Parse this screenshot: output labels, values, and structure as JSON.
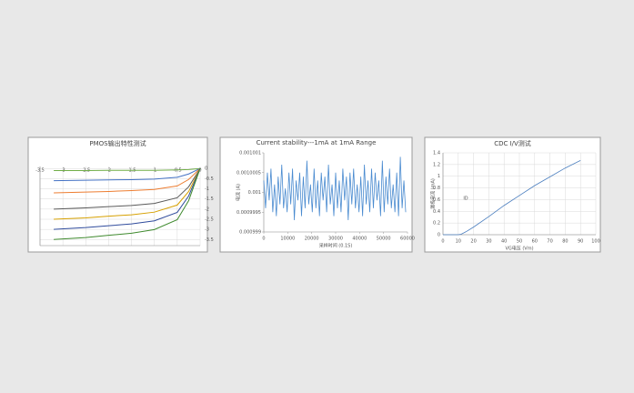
{
  "chart_data": [
    {
      "type": "line",
      "title": "PMOS输出特性测试",
      "grid": true,
      "x": [
        -3.2,
        -2.5,
        -2,
        -1.5,
        -1,
        -0.5,
        -0.25,
        0
      ],
      "xlim": [
        -3.5,
        0
      ],
      "xticks": [
        -3.5,
        -3,
        -2.5,
        -2,
        -1.5,
        -1,
        -0.5,
        0
      ],
      "ylim": [
        -3.8,
        0.1
      ],
      "yticks": [
        0,
        -0.5,
        -1,
        -1.5,
        -2,
        -2.5,
        -3,
        -3.5
      ],
      "series": [
        {
          "color": "#70ad47",
          "values": [
            -0.1,
            -0.1,
            -0.09,
            -0.09,
            -0.09,
            -0.07,
            -0.05,
            0
          ]
        },
        {
          "color": "#4472c4",
          "values": [
            -0.6,
            -0.58,
            -0.56,
            -0.55,
            -0.52,
            -0.43,
            -0.27,
            0
          ]
        },
        {
          "color": "#ed7d31",
          "values": [
            -1.2,
            -1.16,
            -1.13,
            -1.09,
            -1.03,
            -0.86,
            -0.54,
            0
          ]
        },
        {
          "color": "#5a5a5a",
          "values": [
            -2,
            -1.94,
            -1.88,
            -1.82,
            -1.72,
            -1.44,
            -0.9,
            0
          ]
        },
        {
          "color": "#d6a000",
          "values": [
            -2.5,
            -2.43,
            -2.35,
            -2.28,
            -2.15,
            -1.8,
            -1.13,
            0
          ]
        },
        {
          "color": "#2f4b9c",
          "values": [
            -3,
            -2.91,
            -2.82,
            -2.73,
            -2.58,
            -2.16,
            -1.35,
            0
          ]
        },
        {
          "color": "#3f8a2e",
          "values": [
            -3.5,
            -3.4,
            -3.29,
            -3.19,
            -3.01,
            -2.52,
            -1.58,
            0
          ]
        }
      ]
    },
    {
      "type": "line",
      "title": "Current stability---1mA at 1mA Range",
      "grid": false,
      "x_label": "采样时间 (0.1S)",
      "y_label": "电流 (A)",
      "x": [
        0,
        750,
        1500,
        2250,
        3000,
        3750,
        4500,
        5250,
        6000,
        6750,
        7500,
        8250,
        9000,
        9750,
        10500,
        11250,
        12000,
        12750,
        13500,
        14250,
        15000,
        15750,
        16500,
        17250,
        18000,
        18750,
        19500,
        20250,
        21000,
        21750,
        22500,
        23250,
        24000,
        24750,
        25500,
        26250,
        27000,
        27750,
        28500,
        29250,
        30000,
        30750,
        31500,
        32250,
        33000,
        33750,
        34500,
        35250,
        36000,
        36750,
        37500,
        38250,
        39000,
        39750,
        40500,
        41250,
        42000,
        42750,
        43500,
        44250,
        45000,
        45750,
        46500,
        47250,
        48000,
        48750,
        49500,
        50250,
        51000,
        51750,
        52500,
        53250,
        54000,
        54750,
        55500,
        56250,
        57000,
        57750,
        58500,
        59250
      ],
      "xlim": [
        0,
        60000
      ],
      "xticks": [
        0,
        10000,
        20000,
        30000,
        40000,
        50000,
        60000
      ],
      "ylim": [
        0.000999,
        0.001001
      ],
      "yticks": [
        0.000999,
        0.0009995,
        0.001,
        0.0010005,
        0.001001
      ],
      "series": [
        {
          "color": "#4a8bd0",
          "values": [
            0.0010003,
            0.0009996,
            0.0010005,
            0.0009998,
            0.0010006,
            0.0009995,
            0.0010002,
            0.0009994,
            0.0010004,
            0.0009997,
            0.0010007,
            0.0009996,
            0.0010001,
            0.0009995,
            0.0010005,
            0.0009997,
            0.0010006,
            0.0009993,
            0.0010003,
            0.0009998,
            0.0010005,
            0.0009994,
            0.0010004,
            0.0009996,
            0.0010008,
            0.0009997,
            0.0010002,
            0.0009995,
            0.0010006,
            0.0009996,
            0.0010003,
            0.0009994,
            0.0010005,
            0.0009998,
            0.0010004,
            0.0009995,
            0.0010007,
            0.0009997,
            0.0010002,
            0.0009994,
            0.0010005,
            0.0009996,
            0.0010003,
            0.0009995,
            0.0010006,
            0.0009998,
            0.0010004,
            0.0009993,
            0.0010005,
            0.0009997,
            0.0010006,
            0.0009996,
            0.0010002,
            0.0009995,
            0.0010004,
            0.0009994,
            0.0010007,
            0.0009997,
            0.0010003,
            0.0009995,
            0.0010006,
            0.0009996,
            0.0010005,
            0.0009998,
            0.0010003,
            0.0009994,
            0.0010008,
            0.0009995,
            0.0010004,
            0.0009997,
            0.0010006,
            0.0009996,
            0.0010002,
            0.0009995,
            0.0010005,
            0.0009994,
            0.0010009,
            0.0009996,
            0.0010003,
            0.0009995
          ]
        }
      ]
    },
    {
      "type": "line",
      "title": "CDC I/V测试",
      "grid": true,
      "x_label": "VG电压 (Vm)",
      "y_label": "漏极电流 (mA)",
      "annotation": "ID",
      "x": [
        0,
        5,
        10,
        12,
        15,
        20,
        30,
        40,
        50,
        60,
        70,
        80,
        90
      ],
      "xlim": [
        0,
        100
      ],
      "xticks": [
        0,
        10,
        20,
        30,
        40,
        50,
        60,
        70,
        80,
        90,
        100
      ],
      "ylim": [
        0,
        1.4
      ],
      "yticks": [
        0,
        0.2,
        0.4,
        0.6,
        0.8,
        1,
        1.2,
        1.4
      ],
      "series": [
        {
          "color": "#4a7ebf",
          "values": [
            0,
            0,
            0,
            0.01,
            0.05,
            0.13,
            0.31,
            0.5,
            0.67,
            0.84,
            0.99,
            1.14,
            1.27
          ]
        }
      ]
    }
  ]
}
